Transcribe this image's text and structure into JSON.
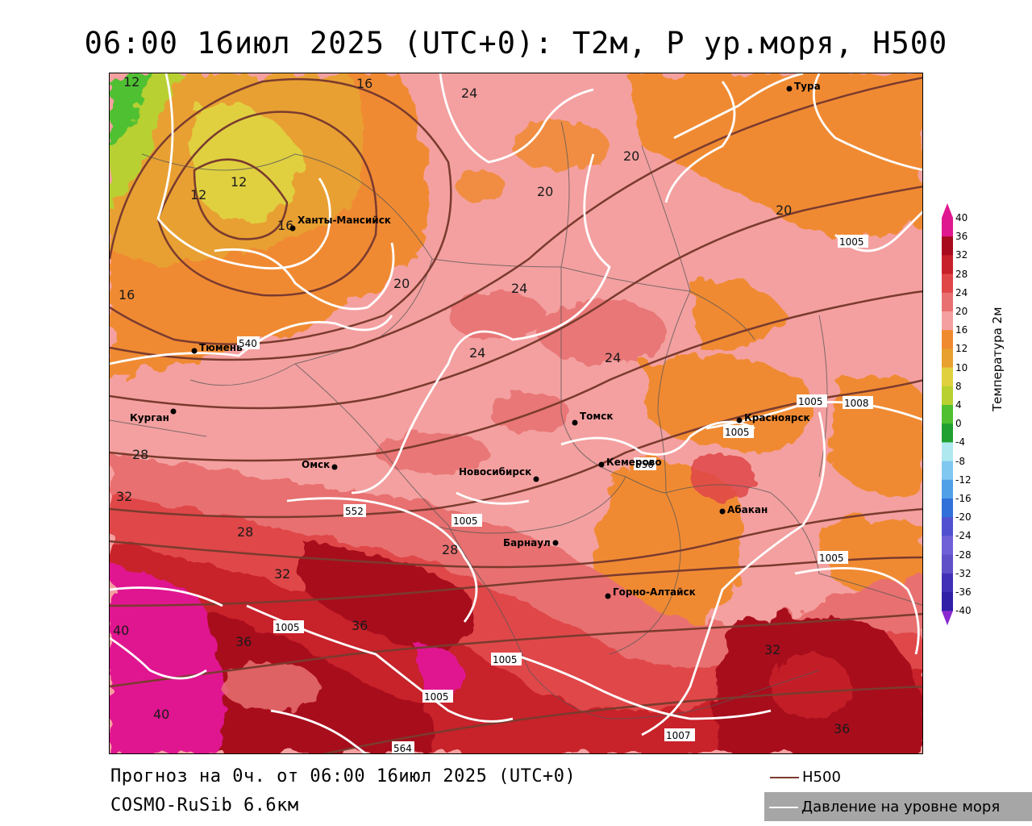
{
  "title": "06:00 16июл 2025 (UTC+0): Т2м, Р ур.моря, Н500",
  "footer": {
    "forecast": "Прогноз на 0ч. от 06:00 16июл 2025 (UTC+0)",
    "model": "COSMO-RuSib 6.6км"
  },
  "legend_keys": {
    "h500": "Н500",
    "pressure": "Давление на уровне моря"
  },
  "colorbar": {
    "title": "Температура 2м",
    "ticks": [
      "40",
      "36",
      "32",
      "28",
      "24",
      "20",
      "16",
      "12",
      "10",
      "8",
      "4",
      "0",
      "-4",
      "-8",
      "-12",
      "-16",
      "-20",
      "-24",
      "-28",
      "-32",
      "-36",
      "-40"
    ],
    "colors": [
      "#e01890",
      "#a80a1e",
      "#c8202a",
      "#e04648",
      "#e87070",
      "#f4a0a0",
      "#f08a30",
      "#e8a030",
      "#e0d040",
      "#b8d030",
      "#50c030",
      "#20a030",
      "#b0e8f0",
      "#80c8f0",
      "#50a0e8",
      "#3070d8",
      "#5050d0",
      "#7060d8",
      "#6050c8",
      "#4030b8",
      "#3020a8"
    ]
  },
  "cities": [
    {
      "name": "Ханты-Мансийск"
    },
    {
      "name": "Тюмень"
    },
    {
      "name": "Курган"
    },
    {
      "name": "Омск"
    },
    {
      "name": "Новосибирск"
    },
    {
      "name": "Томск"
    },
    {
      "name": "Кемерово"
    },
    {
      "name": "Красноярск"
    },
    {
      "name": "Абакан"
    },
    {
      "name": "Барнаул"
    },
    {
      "name": "Горно-Алтайск"
    },
    {
      "name": "Тура"
    }
  ],
  "contour_labels": {
    "temperature": [
      "12",
      "12",
      "12",
      "16",
      "16",
      "16",
      "20",
      "20",
      "20",
      "20",
      "24",
      "24",
      "24",
      "24",
      "28",
      "28",
      "28",
      "32",
      "32",
      "32",
      "36",
      "36",
      "36",
      "40",
      "40"
    ],
    "pressure": [
      "1005",
      "1005",
      "1005",
      "1005",
      "1005",
      "1005",
      "1005",
      "1005",
      "1007",
      "1008"
    ],
    "h500": [
      "540",
      "552",
      "564",
      "556"
    ]
  }
}
